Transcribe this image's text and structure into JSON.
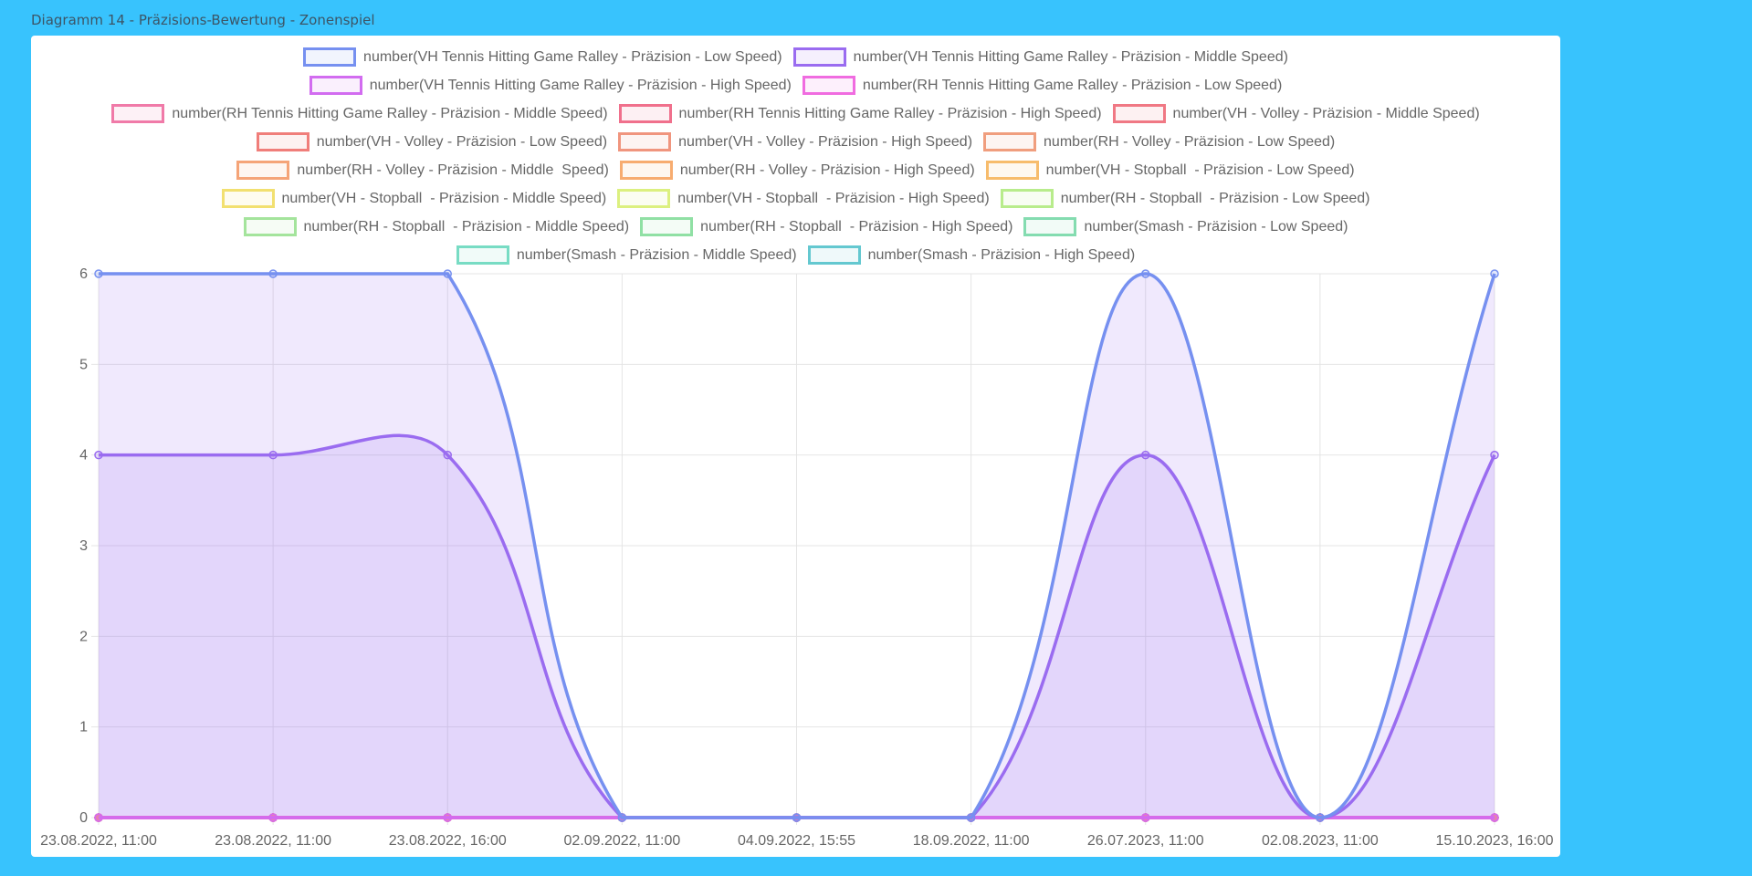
{
  "title": "Diagramm 14 - Präzisions-Bewertung - Zonenspiel",
  "chart_data": {
    "type": "line",
    "title": "Diagramm 14 - Präzisions-Bewertung - Zonenspiel",
    "categories": [
      "23.08.2022, 11:00",
      "23.08.2022, 11:00",
      "23.08.2022, 16:00",
      "02.09.2022, 11:00",
      "04.09.2022, 15:55",
      "18.09.2022, 11:00",
      "26.07.2023, 11:00",
      "02.08.2023, 11:00",
      "15.10.2023, 16:00"
    ],
    "ylim": [
      0,
      6
    ],
    "yticks": [
      "0",
      "1",
      "2",
      "3",
      "4",
      "5",
      "6"
    ],
    "grid": true,
    "legend_position": "top",
    "series": [
      {
        "name": "number(VH Tennis Hitting Game Ralley - Präzision - Low Speed)",
        "color": "#7690f0",
        "values": [
          6,
          6,
          6,
          0,
          0,
          0,
          6,
          0,
          6
        ]
      },
      {
        "name": "number(VH Tennis Hitting Game Ralley - Präzision - Middle Speed)",
        "color": "#9a6cf0",
        "values": [
          4,
          4,
          4,
          0,
          0,
          0,
          4,
          0,
          4
        ]
      },
      {
        "name": "number(VH Tennis Hitting Game Ralley - Präzision - High Speed)",
        "color": "#d26cf0",
        "values": [
          0,
          0,
          0,
          0,
          0,
          0,
          0,
          0,
          0
        ]
      },
      {
        "name": "number(RH Tennis Hitting Game Ralley - Präzision - Low Speed)",
        "color": "#f06ce0",
        "values": [
          0,
          0,
          0,
          0,
          0,
          0,
          0,
          0,
          0
        ]
      },
      {
        "name": "number(RH Tennis Hitting Game Ralley - Präzision - Middle Speed)",
        "color": "#f07aa8",
        "values": [
          0,
          0,
          0,
          0,
          0,
          0,
          0,
          0,
          0
        ]
      },
      {
        "name": "number(RH Tennis Hitting Game Ralley - Präzision - High Speed)",
        "color": "#f0708c",
        "values": [
          0,
          0,
          0,
          0,
          0,
          0,
          0,
          0,
          0
        ]
      },
      {
        "name": "number(VH - Volley - Präzision - Middle Speed)",
        "color": "#f07884",
        "values": [
          0,
          0,
          0,
          0,
          0,
          0,
          0,
          0,
          0
        ]
      },
      {
        "name": "number(VH - Volley - Präzision - Low Speed)",
        "color": "#f07e7a",
        "values": [
          0,
          0,
          0,
          0,
          0,
          0,
          0,
          0,
          0
        ]
      },
      {
        "name": "number(VH - Volley - Präzision - High Speed)",
        "color": "#f0957e",
        "values": [
          0,
          0,
          0,
          0,
          0,
          0,
          0,
          0,
          0
        ]
      },
      {
        "name": "number(RH - Volley - Präzision - Low Speed)",
        "color": "#f09e7e",
        "values": [
          0,
          0,
          0,
          0,
          0,
          0,
          0,
          0,
          0
        ]
      },
      {
        "name": "number(RH - Volley - Präzision - Middle  Speed)",
        "color": "#f5a478",
        "values": [
          0,
          0,
          0,
          0,
          0,
          0,
          0,
          0,
          0
        ]
      },
      {
        "name": "number(RH - Volley - Präzision - High Speed)",
        "color": "#f7ac70",
        "values": [
          0,
          0,
          0,
          0,
          0,
          0,
          0,
          0,
          0
        ]
      },
      {
        "name": "number(VH - Stopball  - Präzision - Low Speed)",
        "color": "#f7bc6c",
        "values": [
          0,
          0,
          0,
          0,
          0,
          0,
          0,
          0,
          0
        ]
      },
      {
        "name": "number(VH - Stopball  - Präzision - Middle Speed)",
        "color": "#f2e070",
        "values": [
          0,
          0,
          0,
          0,
          0,
          0,
          0,
          0,
          0
        ]
      },
      {
        "name": "number(VH - Stopball  - Präzision - High Speed)",
        "color": "#dcf080",
        "values": [
          0,
          0,
          0,
          0,
          0,
          0,
          0,
          0,
          0
        ]
      },
      {
        "name": "number(RH - Stopball  - Präzision - Low Speed)",
        "color": "#b8ec8c",
        "values": [
          0,
          0,
          0,
          0,
          0,
          0,
          0,
          0,
          0
        ]
      },
      {
        "name": "number(RH - Stopball  - Präzision - Middle Speed)",
        "color": "#a4e49c",
        "values": [
          0,
          0,
          0,
          0,
          0,
          0,
          0,
          0,
          0
        ]
      },
      {
        "name": "number(RH - Stopball  - Präzision - High Speed)",
        "color": "#90e0a4",
        "values": [
          0,
          0,
          0,
          0,
          0,
          0,
          0,
          0,
          0
        ]
      },
      {
        "name": "number(Smash - Präzision - Low Speed)",
        "color": "#84dcb0",
        "values": [
          0,
          0,
          0,
          0,
          0,
          0,
          0,
          0,
          0
        ]
      },
      {
        "name": "number(Smash - Präzision - Middle Speed)",
        "color": "#78dcc4",
        "values": [
          0,
          0,
          0,
          0,
          0,
          0,
          0,
          0,
          0
        ]
      },
      {
        "name": "number(Smash - Präzision - High Speed)",
        "color": "#64c8d0",
        "values": [
          0,
          0,
          0,
          0,
          0,
          0,
          0,
          0,
          0
        ]
      }
    ]
  }
}
